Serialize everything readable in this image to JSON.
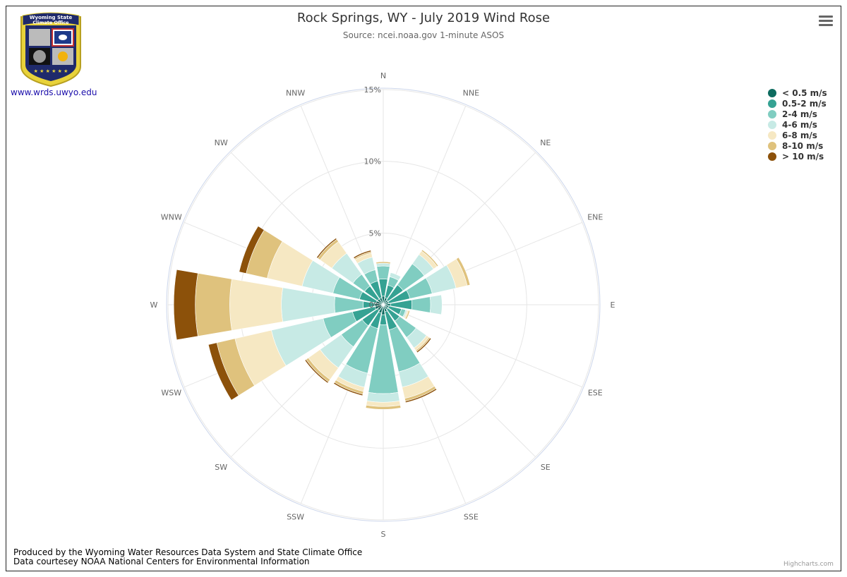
{
  "header": {
    "title": "Rock Springs, WY - July 2019 Wind Rose",
    "subtitle": "Source: ncei.noaa.gov 1-minute ASOS",
    "menu_icon": "hamburger-menu-icon"
  },
  "logo": {
    "text_line1": "Wyoming State",
    "text_line2": "Climate Office",
    "link": "www.wrds.uwyo.edu"
  },
  "footer": {
    "line1": "Produced by the Wyoming Water Resources Data System and State Climate Office",
    "line2": "Data courtesey NOAA National Centers for Environmental Information",
    "credits": "Highcharts.com"
  },
  "chart_data": {
    "type": "bar",
    "polar": true,
    "stacked": true,
    "categories": [
      "N",
      "NNE",
      "NE",
      "ENE",
      "E",
      "ESE",
      "SE",
      "SSE",
      "S",
      "SSW",
      "SW",
      "WSW",
      "W",
      "WNW",
      "NW",
      "NNW"
    ],
    "y_ticks": [
      "0%",
      "5%",
      "10%",
      "15%"
    ],
    "ylim": [
      0,
      15
    ],
    "legend_position": "top-right",
    "series": [
      {
        "name": "< 0.5 m/s",
        "color": "#0d6b5f",
        "values": [
          0.6,
          0.5,
          0.4,
          0.4,
          0.5,
          0.4,
          0.4,
          0.5,
          0.7,
          0.6,
          0.5,
          0.6,
          0.6,
          0.5,
          0.5,
          0.5
        ]
      },
      {
        "name": "0.5-2 m/s",
        "color": "#35a293",
        "values": [
          1.2,
          0.9,
          1.3,
          1.5,
          1.5,
          0.9,
          1.0,
          1.3,
          0.7,
          1.1,
          1.3,
          1.6,
          0.8,
          1.2,
          1.1,
          1.2
        ]
      },
      {
        "name": "2-4 m/s",
        "color": "#80cdc1",
        "values": [
          0.9,
          0.6,
          1.8,
          1.6,
          1.3,
          0.3,
          1.4,
          3.0,
          4.8,
          3.2,
          1.8,
          2.1,
          2.0,
          1.9,
          1.0,
          0.8
        ]
      },
      {
        "name": "4-6 m/s",
        "color": "#c7eae5",
        "values": [
          0.2,
          0.3,
          0.8,
          1.7,
          0.8,
          0.1,
          0.9,
          1.1,
          0.6,
          1.0,
          1.8,
          3.7,
          3.7,
          2.2,
          1.8,
          0.9
        ]
      },
      {
        "name": "6-8 m/s",
        "color": "#f6e8c3",
        "values": [
          0.0,
          0.0,
          0.3,
          0.8,
          0.0,
          0.1,
          0.2,
          0.8,
          0.3,
          0.3,
          1.0,
          2.6,
          3.6,
          2.5,
          1.0,
          0.3
        ]
      },
      {
        "name": "8-10 m/s",
        "color": "#dfc27d",
        "values": [
          0.1,
          0.0,
          0.1,
          0.2,
          0.0,
          0.1,
          0.1,
          0.2,
          0.2,
          0.2,
          0.2,
          1.3,
          2.4,
          1.5,
          0.2,
          0.1
        ]
      },
      {
        "name": "> 10 m/s",
        "color": "#8c510a",
        "values": [
          0.0,
          0.0,
          0.0,
          0.0,
          0.0,
          0.0,
          0.1,
          0.1,
          0.0,
          0.1,
          0.1,
          0.6,
          1.5,
          0.5,
          0.1,
          0.1
        ]
      }
    ]
  }
}
